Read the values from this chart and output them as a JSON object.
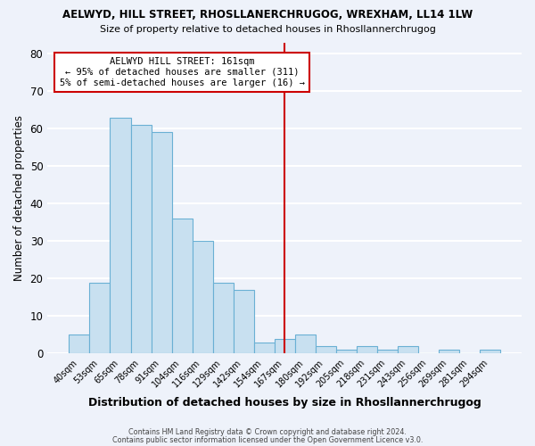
{
  "title": "AELWYD, HILL STREET, RHOSLLANERCHRUGOG, WREXHAM, LL14 1LW",
  "subtitle": "Size of property relative to detached houses in Rhosllannerchrugog",
  "xlabel": "Distribution of detached houses by size in Rhosllannerchrugog",
  "ylabel": "Number of detached properties",
  "bin_labels": [
    "40sqm",
    "53sqm",
    "65sqm",
    "78sqm",
    "91sqm",
    "104sqm",
    "116sqm",
    "129sqm",
    "142sqm",
    "154sqm",
    "167sqm",
    "180sqm",
    "192sqm",
    "205sqm",
    "218sqm",
    "231sqm",
    "243sqm",
    "256sqm",
    "269sqm",
    "281sqm",
    "294sqm"
  ],
  "bar_heights": [
    5,
    19,
    63,
    61,
    59,
    36,
    30,
    19,
    17,
    3,
    4,
    5,
    2,
    1,
    2,
    1,
    2,
    0,
    1,
    0,
    1
  ],
  "bar_color": "#c8e0f0",
  "bar_edge_color": "#6ab0d4",
  "vline_x_index": 10,
  "vline_color": "#cc0000",
  "annotation_title": "AELWYD HILL STREET: 161sqm",
  "annotation_line1": "← 95% of detached houses are smaller (311)",
  "annotation_line2": "5% of semi-detached houses are larger (16) →",
  "annotation_box_color": "#ffffff",
  "annotation_box_edge": "#cc0000",
  "ylim": [
    0,
    83
  ],
  "yticks": [
    0,
    10,
    20,
    30,
    40,
    50,
    60,
    70,
    80
  ],
  "footer1": "Contains HM Land Registry data © Crown copyright and database right 2024.",
  "footer2": "Contains public sector information licensed under the Open Government Licence v3.0.",
  "background_color": "#eef2fa",
  "grid_color": "#ffffff"
}
